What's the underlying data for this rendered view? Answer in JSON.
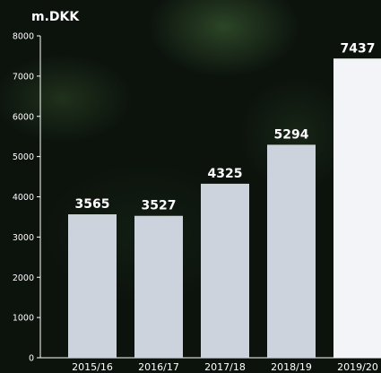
{
  "chart_data": {
    "type": "bar",
    "unit_label": "m.DKK",
    "categories": [
      "2015/16",
      "2016/17",
      "2017/18",
      "2018/19",
      "2019/20"
    ],
    "values": [
      3565,
      3527,
      4325,
      5294,
      7437
    ],
    "ylim": [
      0,
      8000
    ],
    "yticks": [
      "0",
      "1000",
      "2000",
      "3000",
      "4000",
      "5000",
      "6000",
      "7000",
      "8000"
    ],
    "colors": {
      "bar": "#ccd3dc",
      "highlight_bar": "#f2f4f8",
      "axis": "#ffffff",
      "text": "#ffffff"
    },
    "highlight_index": 4,
    "grid": false,
    "legend": "none"
  }
}
